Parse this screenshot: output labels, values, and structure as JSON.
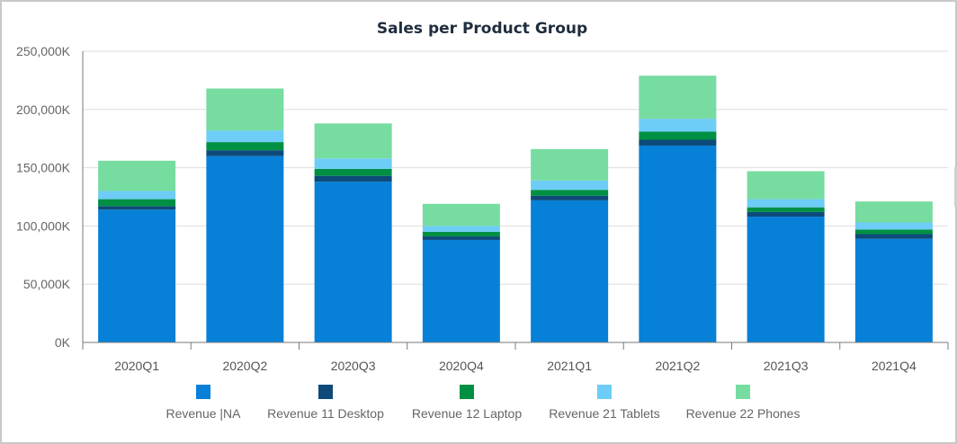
{
  "chart_data": {
    "type": "bar",
    "stacked": true,
    "title": "Sales per Product Group",
    "categories": [
      "2020Q1",
      "2020Q2",
      "2020Q3",
      "2020Q4",
      "2021Q1",
      "2021Q2",
      "2021Q3",
      "2021Q4"
    ],
    "y_ticks": [
      "0K",
      "50,000K",
      "100,000K",
      "150,000K",
      "200,000K",
      "250,000K"
    ],
    "ylim": [
      0,
      250000
    ],
    "y_unit": "K",
    "grid": true,
    "legend_position": "bottom",
    "series": [
      {
        "name": "Revenue |NA",
        "color": "#0780d7",
        "values": [
          114000,
          160000,
          138000,
          88000,
          122000,
          169000,
          108000,
          89000
        ]
      },
      {
        "name": "Revenue 11 Desktop",
        "color": "#0d4a7a",
        "values": [
          3000,
          5000,
          5000,
          3000,
          4000,
          5000,
          4000,
          4000
        ]
      },
      {
        "name": "Revenue 12 Laptop",
        "color": "#009043",
        "values": [
          6000,
          7000,
          6000,
          4000,
          5000,
          7000,
          4000,
          4000
        ]
      },
      {
        "name": "Revenue 21 Tablets",
        "color": "#6dcdf6",
        "values": [
          7000,
          10000,
          9000,
          5000,
          8000,
          11000,
          7000,
          6000
        ]
      },
      {
        "name": "Revenue 22 Phones",
        "color": "#77dca0",
        "values": [
          26000,
          36000,
          30000,
          19000,
          27000,
          37000,
          24000,
          18000
        ]
      }
    ]
  }
}
